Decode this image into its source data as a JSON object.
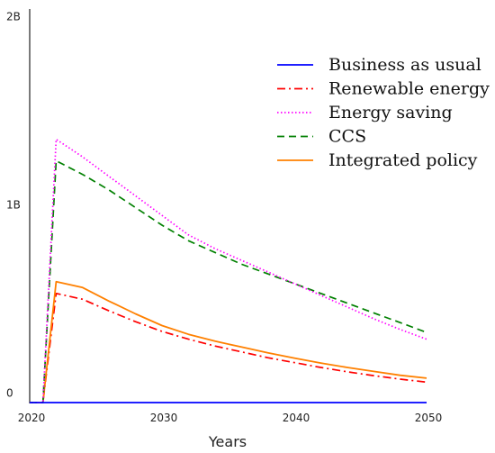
{
  "chart_data": {
    "type": "line",
    "title": "",
    "xlabel": "Years",
    "ylabel": "",
    "xlim": [
      2020,
      2050
    ],
    "ylim": [
      0,
      2000000000
    ],
    "x_ticks": [
      {
        "value": 2020,
        "label": "2020"
      },
      {
        "value": 2030,
        "label": "2030"
      },
      {
        "value": 2040,
        "label": "2040"
      },
      {
        "value": 2050,
        "label": "2050"
      }
    ],
    "y_ticks": [
      {
        "value": 0,
        "label": "0"
      },
      {
        "value": 1000000000,
        "label": "1B"
      },
      {
        "value": 2000000000,
        "label": "2B"
      }
    ],
    "legend_position": "top-right",
    "grid": false,
    "series": [
      {
        "name": "Business as usual",
        "color": "#0000ff",
        "dash": "solid",
        "points": [
          [
            2020,
            0
          ],
          [
            2050,
            0
          ]
        ]
      },
      {
        "name": "Renewable energy",
        "color": "#ff0000",
        "dash": "dashdot",
        "points": [
          [
            2020,
            0
          ],
          [
            2021,
            0
          ],
          [
            2022,
            560000000
          ],
          [
            2024,
            530000000
          ],
          [
            2026,
            470000000
          ],
          [
            2028,
            415000000
          ],
          [
            2030,
            365000000
          ],
          [
            2032,
            325000000
          ],
          [
            2034,
            290000000
          ],
          [
            2036,
            260000000
          ],
          [
            2038,
            230000000
          ],
          [
            2040,
            205000000
          ],
          [
            2042,
            180000000
          ],
          [
            2044,
            158000000
          ],
          [
            2046,
            138000000
          ],
          [
            2048,
            120000000
          ],
          [
            2050,
            105000000
          ]
        ]
      },
      {
        "name": "Energy saving",
        "color": "#ff00ff",
        "dash": "dotted",
        "points": [
          [
            2020,
            0
          ],
          [
            2021,
            0
          ],
          [
            2022,
            1350000000
          ],
          [
            2024,
            1260000000
          ],
          [
            2026,
            1160000000
          ],
          [
            2028,
            1060000000
          ],
          [
            2030,
            960000000
          ],
          [
            2032,
            860000000
          ],
          [
            2034,
            790000000
          ],
          [
            2036,
            730000000
          ],
          [
            2038,
            670000000
          ],
          [
            2040,
            610000000
          ],
          [
            2042,
            550000000
          ],
          [
            2044,
            490000000
          ],
          [
            2046,
            430000000
          ],
          [
            2048,
            375000000
          ],
          [
            2050,
            325000000
          ]
        ]
      },
      {
        "name": "CCS",
        "color": "#008000",
        "dash": "dashed",
        "points": [
          [
            2020,
            0
          ],
          [
            2021,
            0
          ],
          [
            2022,
            1240000000
          ],
          [
            2024,
            1170000000
          ],
          [
            2026,
            1090000000
          ],
          [
            2028,
            1000000000
          ],
          [
            2030,
            910000000
          ],
          [
            2032,
            830000000
          ],
          [
            2034,
            770000000
          ],
          [
            2036,
            710000000
          ],
          [
            2038,
            660000000
          ],
          [
            2040,
            610000000
          ],
          [
            2042,
            560000000
          ],
          [
            2044,
            510000000
          ],
          [
            2046,
            460000000
          ],
          [
            2048,
            410000000
          ],
          [
            2050,
            360000000
          ]
        ]
      },
      {
        "name": "Integrated policy",
        "color": "#ff8000",
        "dash": "solid",
        "points": [
          [
            2020,
            0
          ],
          [
            2021,
            0
          ],
          [
            2022,
            620000000
          ],
          [
            2024,
            590000000
          ],
          [
            2026,
            520000000
          ],
          [
            2028,
            455000000
          ],
          [
            2030,
            395000000
          ],
          [
            2032,
            350000000
          ],
          [
            2034,
            315000000
          ],
          [
            2036,
            285000000
          ],
          [
            2038,
            255000000
          ],
          [
            2040,
            228000000
          ],
          [
            2042,
            203000000
          ],
          [
            2044,
            180000000
          ],
          [
            2046,
            160000000
          ],
          [
            2048,
            140000000
          ],
          [
            2050,
            125000000
          ]
        ]
      }
    ]
  }
}
